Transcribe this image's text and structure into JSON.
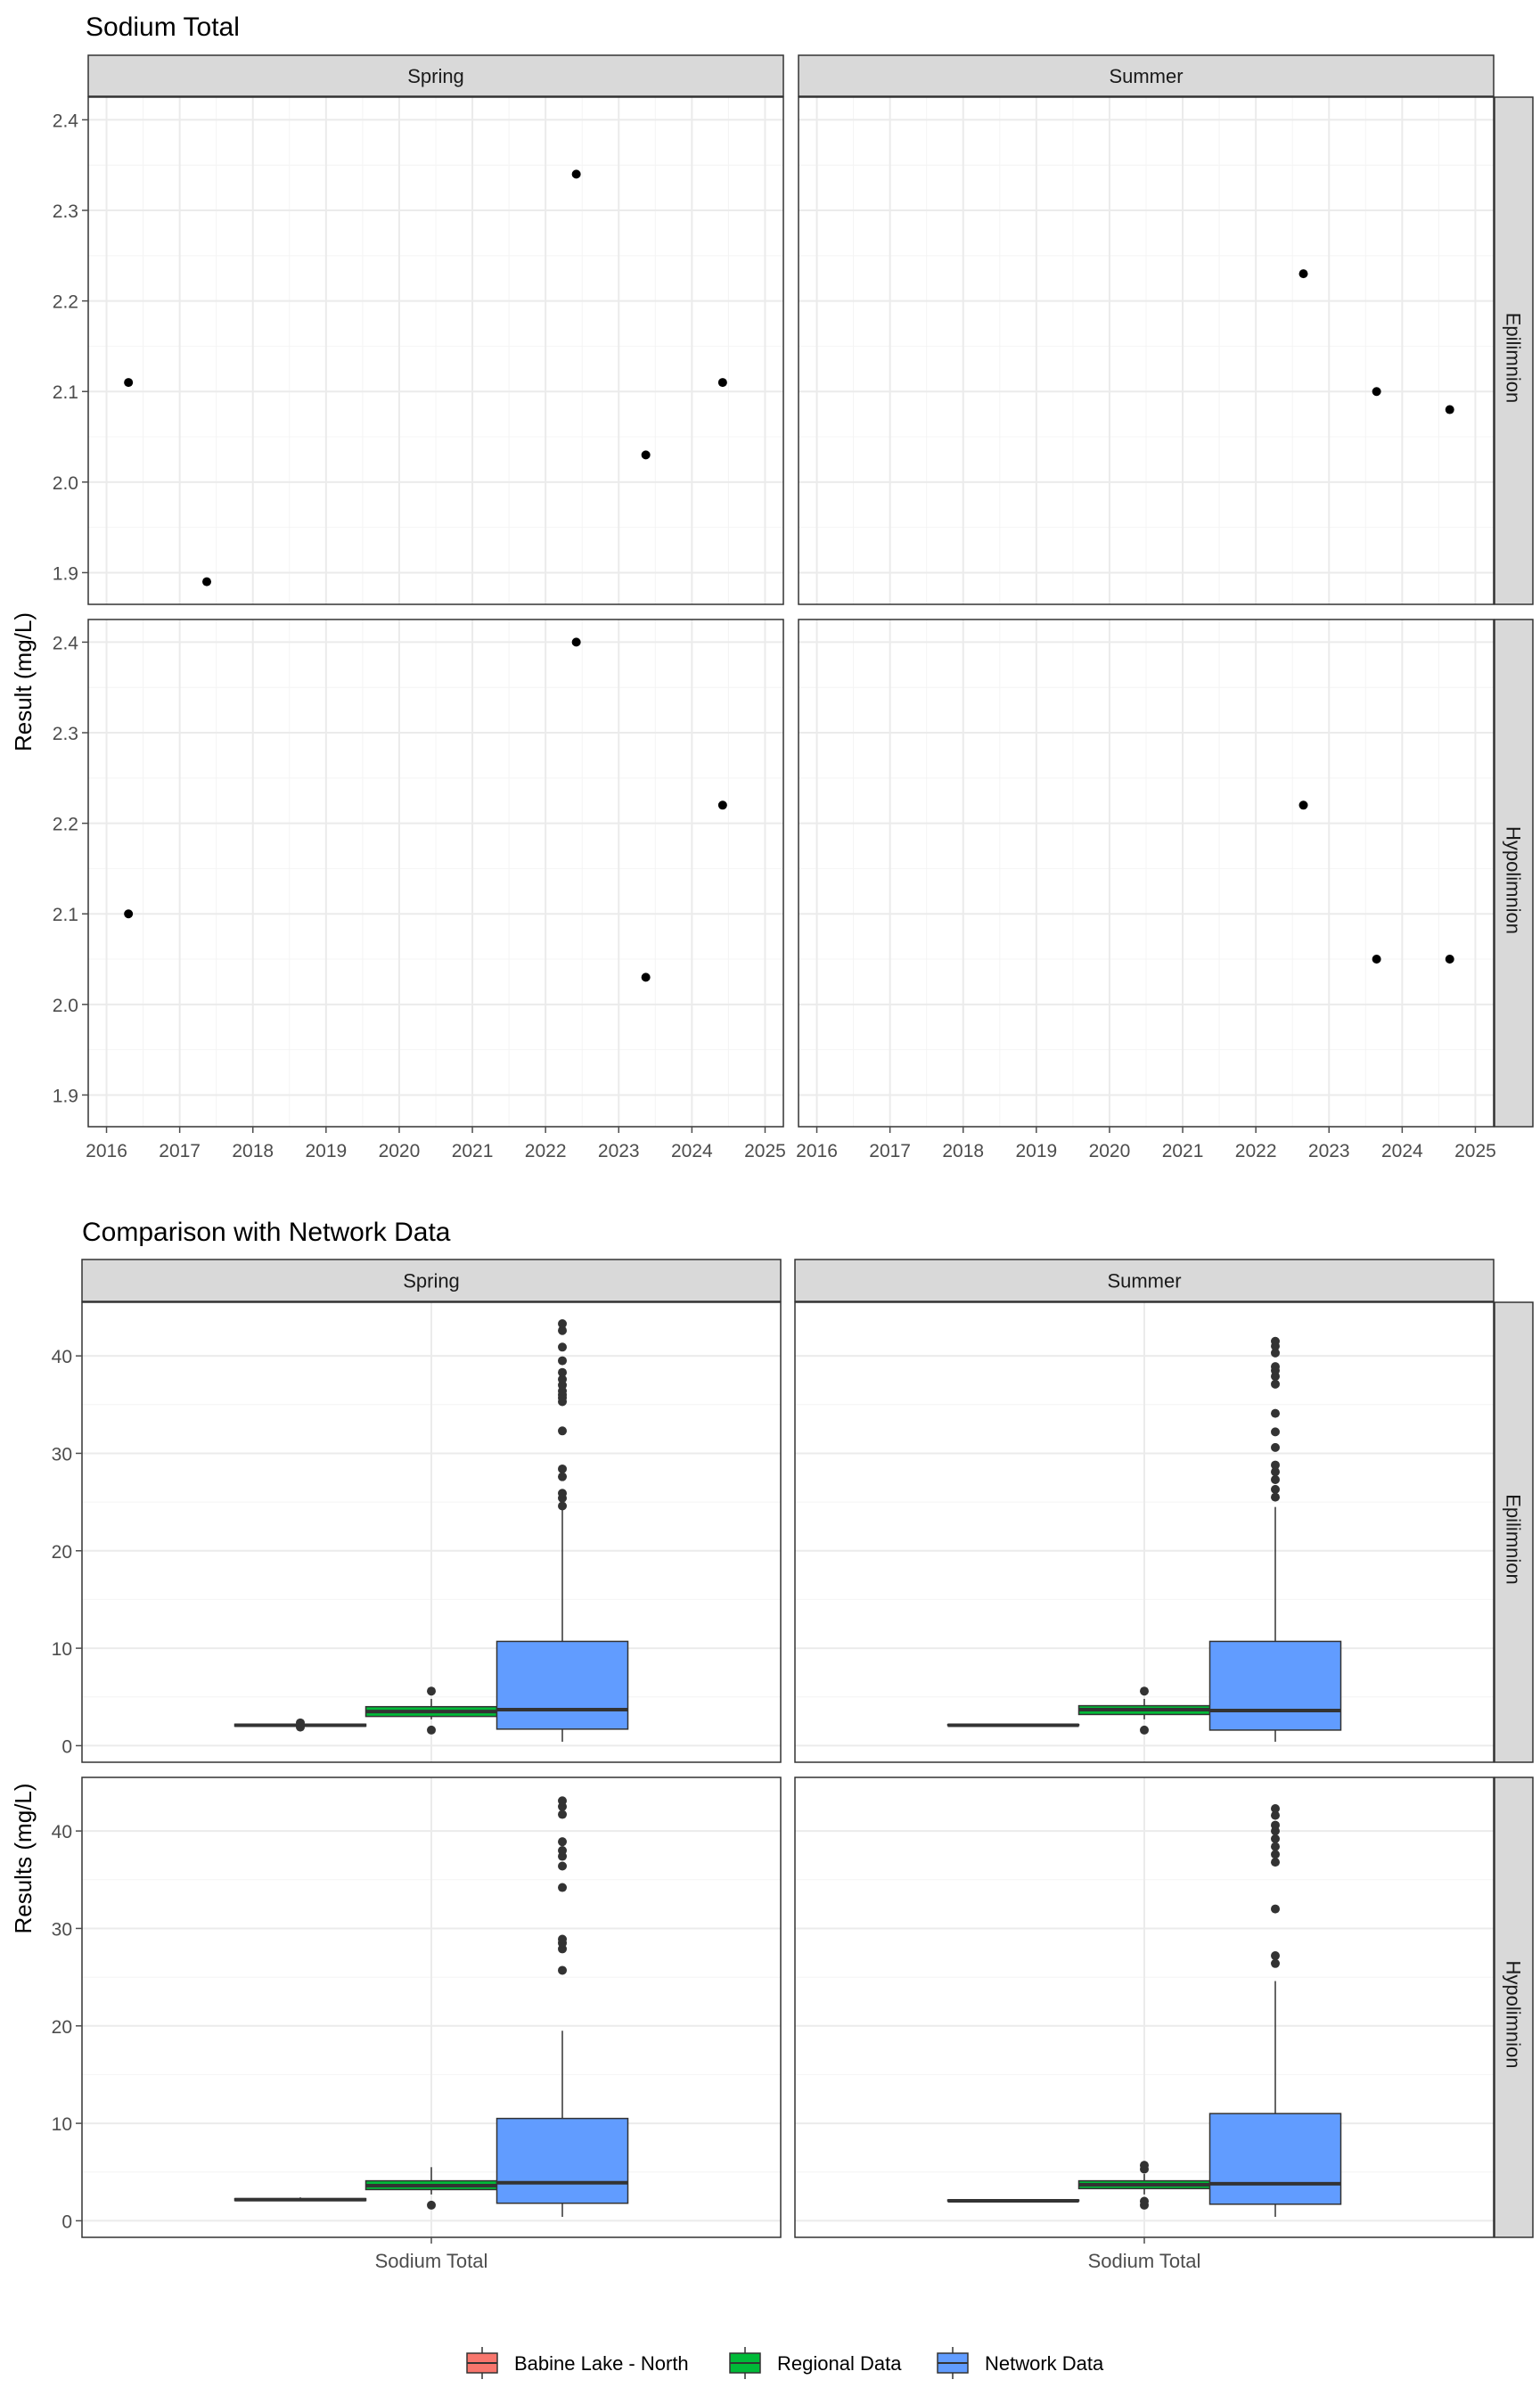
{
  "chart_data": [
    {
      "type": "scatter",
      "title": "Sodium Total",
      "xlabel": "",
      "ylabel": "Result (mg/L)",
      "xlim": [
        2015.75,
        2025.25
      ],
      "ylim": [
        1.865,
        2.425
      ],
      "x_ticks": [
        2016,
        2017,
        2018,
        2019,
        2020,
        2021,
        2022,
        2023,
        2024,
        2025
      ],
      "y_ticks": [
        1.9,
        2.0,
        2.1,
        2.2,
        2.3,
        2.4
      ],
      "y_tick_labels": [
        "1.9",
        "2.0",
        "2.1",
        "2.2",
        "2.3",
        "2.4"
      ],
      "grid": true,
      "facet_cols": [
        "Spring",
        "Summer"
      ],
      "facet_rows": [
        "Epilimnion",
        "Hypolimnion"
      ],
      "panels": [
        {
          "col": "Spring",
          "row": "Epilimnion",
          "points": [
            {
              "x": 2016.3,
              "y": 2.11
            },
            {
              "x": 2017.37,
              "y": 1.89
            },
            {
              "x": 2022.42,
              "y": 2.34
            },
            {
              "x": 2023.37,
              "y": 2.03
            },
            {
              "x": 2024.42,
              "y": 2.11
            }
          ]
        },
        {
          "col": "Summer",
          "row": "Epilimnion",
          "points": [
            {
              "x": 2022.65,
              "y": 2.23
            },
            {
              "x": 2023.65,
              "y": 2.1
            },
            {
              "x": 2024.65,
              "y": 2.08
            }
          ]
        },
        {
          "col": "Spring",
          "row": "Hypolimnion",
          "points": [
            {
              "x": 2016.3,
              "y": 2.1
            },
            {
              "x": 2022.42,
              "y": 2.4
            },
            {
              "x": 2023.37,
              "y": 2.03
            },
            {
              "x": 2024.42,
              "y": 2.22
            }
          ]
        },
        {
          "col": "Summer",
          "row": "Hypolimnion",
          "points": [
            {
              "x": 2022.65,
              "y": 2.22
            },
            {
              "x": 2023.65,
              "y": 2.05
            },
            {
              "x": 2024.65,
              "y": 2.05
            }
          ]
        }
      ]
    },
    {
      "type": "box",
      "title": "Comparison with Network Data",
      "xlabel": "",
      "ylabel": "Results (mg/L)",
      "categories": [
        "Sodium Total"
      ],
      "ylim": [
        -1.7,
        45.5
      ],
      "y_ticks": [
        0,
        10,
        20,
        30,
        40
      ],
      "grid": true,
      "facet_cols": [
        "Spring",
        "Summer"
      ],
      "facet_rows": [
        "Epilimnion",
        "Hypolimnion"
      ],
      "legend": {
        "position": "bottom",
        "title": ""
      },
      "series": [
        {
          "name": "Babine Lake - North",
          "color": "#F8766D"
        },
        {
          "name": "Regional Data",
          "color": "#00BA38"
        },
        {
          "name": "Network Data",
          "color": "#619CFF"
        }
      ],
      "panels": [
        {
          "col": "Spring",
          "row": "Epilimnion",
          "boxes": [
            {
              "series": "Babine Lake - North",
              "min": 1.9,
              "q1": 2.0,
              "median": 2.1,
              "q3": 2.2,
              "max": 2.3,
              "outliers": [
                1.9,
                2.34
              ]
            },
            {
              "series": "Regional Data",
              "min": 2.7,
              "q1": 3.0,
              "median": 3.5,
              "q3": 4.0,
              "max": 4.8,
              "outliers": [
                1.6,
                5.6
              ]
            },
            {
              "series": "Network Data",
              "min": 0.4,
              "q1": 1.7,
              "median": 3.7,
              "q3": 10.7,
              "max": 24.2,
              "outliers": [
                24.6,
                25.4,
                25.9,
                27.6,
                28.4,
                32.3,
                35.3,
                35.7,
                36.0,
                36.4,
                37.0,
                37.6,
                38.3,
                39.5,
                40.9,
                42.6,
                43.3
              ]
            }
          ]
        },
        {
          "col": "Summer",
          "row": "Epilimnion",
          "boxes": [
            {
              "series": "Babine Lake - North",
              "min": 2.08,
              "q1": 2.09,
              "median": 2.1,
              "q3": 2.17,
              "max": 2.23,
              "outliers": []
            },
            {
              "series": "Regional Data",
              "min": 2.7,
              "q1": 3.2,
              "median": 3.7,
              "q3": 4.1,
              "max": 4.8,
              "outliers": [
                1.6,
                5.6
              ]
            },
            {
              "series": "Network Data",
              "min": 0.4,
              "q1": 1.6,
              "median": 3.6,
              "q3": 10.7,
              "max": 24.5,
              "outliers": [
                25.5,
                26.3,
                27.3,
                28.1,
                28.8,
                30.6,
                32.2,
                34.1,
                37.1,
                37.9,
                38.5,
                38.9,
                40.3,
                41.0,
                41.5
              ]
            }
          ]
        },
        {
          "col": "Spring",
          "row": "Hypolimnion",
          "boxes": [
            {
              "series": "Babine Lake - North",
              "min": 2.03,
              "q1": 2.08,
              "median": 2.16,
              "q3": 2.27,
              "max": 2.4,
              "outliers": []
            },
            {
              "series": "Regional Data",
              "min": 2.7,
              "q1": 3.2,
              "median": 3.6,
              "q3": 4.1,
              "max": 5.5,
              "outliers": [
                1.6
              ]
            },
            {
              "series": "Network Data",
              "min": 0.4,
              "q1": 1.8,
              "median": 3.9,
              "q3": 10.5,
              "max": 19.5,
              "outliers": [
                25.7,
                27.9,
                28.5,
                28.9,
                34.2,
                36.4,
                37.4,
                38.0,
                38.9,
                41.7,
                42.5,
                43.1
              ]
            }
          ]
        },
        {
          "col": "Summer",
          "row": "Hypolimnion",
          "boxes": [
            {
              "series": "Babine Lake - North",
              "min": 2.05,
              "q1": 2.05,
              "median": 2.05,
              "q3": 2.13,
              "max": 2.22,
              "outliers": []
            },
            {
              "series": "Regional Data",
              "min": 2.7,
              "q1": 3.3,
              "median": 3.7,
              "q3": 4.1,
              "max": 4.8,
              "outliers": [
                1.6,
                2.0,
                5.3,
                5.7
              ]
            },
            {
              "series": "Network Data",
              "min": 0.4,
              "q1": 1.7,
              "median": 3.8,
              "q3": 11.0,
              "max": 24.6,
              "outliers": [
                26.4,
                27.2,
                32.0,
                36.8,
                37.6,
                38.4,
                39.2,
                40.0,
                40.6,
                41.6,
                42.3
              ]
            }
          ]
        }
      ]
    }
  ]
}
